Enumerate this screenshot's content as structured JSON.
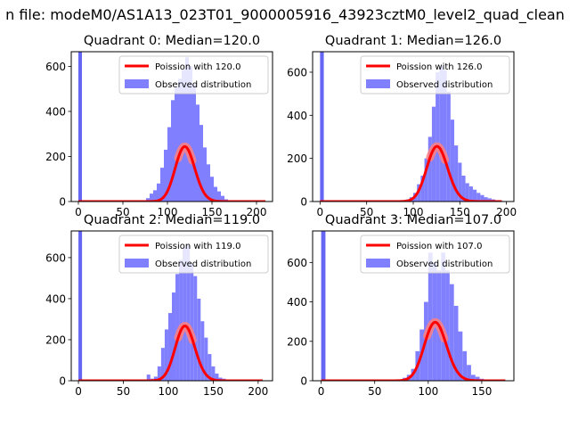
{
  "figure": {
    "suptitle": "n file: modeM0/AS1A13_023T01_9000005916_43923cztM0_level2_quad_clean"
  },
  "colors": {
    "hist": "#8080ff",
    "hist_spike": "#6666f4",
    "poisson_line": "#ff0000",
    "poisson_peak_glow": "#ff8080"
  },
  "chart_data": [
    {
      "type": "bar",
      "title": "Quadrant 0: Median=120.0",
      "xlim": [
        -8,
        218
      ],
      "ylim": [
        0,
        665
      ],
      "xticks": [
        0,
        50,
        100,
        150,
        200
      ],
      "yticks": [
        0,
        200,
        400,
        600
      ],
      "spike": {
        "x": 0,
        "height": 665
      },
      "hist": {
        "x": [
          72,
          76,
          80,
          84,
          88,
          92,
          96,
          100,
          104,
          108,
          112,
          116,
          120,
          124,
          128,
          132,
          136,
          140,
          144,
          148,
          152,
          156,
          160,
          164,
          168
        ],
        "values": [
          5,
          15,
          35,
          50,
          80,
          150,
          230,
          330,
          450,
          505,
          545,
          585,
          640,
          600,
          520,
          430,
          340,
          240,
          165,
          110,
          65,
          45,
          25,
          10,
          5
        ]
      },
      "poisson": {
        "lambda": 120.0,
        "scale": 6700,
        "x_range": [
          0,
          210
        ]
      },
      "legend": [
        "Poission with 120.0",
        "Observed distribution"
      ],
      "legend_position": "upper right"
    },
    {
      "type": "bar",
      "title": "Quadrant 1: Median=126.0",
      "xlim": [
        -8,
        208
      ],
      "ylim": [
        0,
        695
      ],
      "xticks": [
        0,
        50,
        100,
        150,
        200
      ],
      "yticks": [
        0,
        200,
        400,
        600
      ],
      "spike": {
        "x": 0,
        "height": 695
      },
      "hist": {
        "x": [
          88,
          92,
          96,
          100,
          104,
          108,
          112,
          116,
          120,
          124,
          128,
          132,
          136,
          140,
          144,
          148,
          152,
          156,
          160,
          164,
          168,
          172,
          176,
          180,
          184,
          188,
          192
        ],
        "values": [
          5,
          10,
          20,
          40,
          80,
          120,
          200,
          300,
          440,
          600,
          630,
          610,
          510,
          380,
          260,
          180,
          120,
          85,
          70,
          55,
          40,
          30,
          20,
          15,
          10,
          5,
          3
        ]
      },
      "poisson": {
        "lambda": 126.0,
        "scale": 7200,
        "x_range": [
          0,
          195
        ]
      },
      "legend": [
        "Poission with 126.0",
        "Observed distribution"
      ],
      "legend_position": "upper right"
    },
    {
      "type": "bar",
      "title": "Quadrant 2: Median=119.0",
      "xlim": [
        -8,
        216
      ],
      "ylim": [
        0,
        730
      ],
      "xticks": [
        0,
        50,
        100,
        150,
        200
      ],
      "yticks": [
        0,
        200,
        400,
        600
      ],
      "spike": {
        "x": 0,
        "height": 730
      },
      "hist": {
        "x": [
          76,
          80,
          84,
          88,
          92,
          96,
          100,
          104,
          108,
          112,
          116,
          120,
          124,
          128,
          132,
          136,
          140,
          144,
          148,
          152,
          156,
          160,
          164
        ],
        "values": [
          30,
          10,
          20,
          70,
          160,
          250,
          330,
          430,
          520,
          590,
          650,
          660,
          570,
          510,
          400,
          290,
          210,
          130,
          70,
          35,
          15,
          10,
          5
        ]
      },
      "poisson": {
        "lambda": 119.0,
        "scale": 7300,
        "x_range": [
          0,
          205
        ]
      },
      "legend": [
        "Poission with 119.0",
        "Observed distribution"
      ],
      "legend_position": "upper right"
    },
    {
      "type": "bar",
      "title": "Quadrant 3: Median=107.0",
      "xlim": [
        -8,
        180
      ],
      "ylim": [
        0,
        760
      ],
      "xticks": [
        0,
        50,
        100,
        150
      ],
      "yticks": [
        0,
        200,
        400,
        600
      ],
      "spike": {
        "x": 0,
        "height": 760
      },
      "hist": {
        "x": [
          4,
          56,
          68,
          76,
          80,
          84,
          88,
          92,
          96,
          100,
          104,
          108,
          112,
          116,
          120,
          124,
          128,
          132,
          136,
          140,
          144,
          148,
          152
        ],
        "values": [
          5,
          5,
          5,
          15,
          30,
          60,
          150,
          260,
          400,
          650,
          600,
          560,
          650,
          560,
          490,
          380,
          250,
          150,
          80,
          30,
          20,
          10,
          5
        ]
      },
      "poisson": {
        "lambda": 107.0,
        "scale": 7700,
        "x_range": [
          0,
          172
        ]
      },
      "legend": [
        "Poission with 107.0",
        "Observed distribution"
      ],
      "legend_position": "upper right"
    }
  ]
}
